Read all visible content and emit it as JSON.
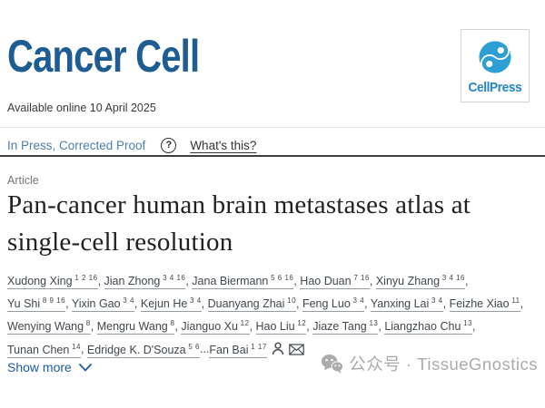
{
  "page": {
    "journal_title": "Cancer Cell",
    "logo_text": "CellPress",
    "available_online": "Available online 10 April 2025",
    "status": "In Press, Corrected Proof",
    "help_icon_glyph": "?",
    "whats_this": "What's this?",
    "article_type": "Article",
    "title": "Pan-cancer human brain metastases atlas at single-cell resolution",
    "separator": ", ",
    "ellipsis": "...",
    "authors": [
      {
        "name": "Xudong Xing",
        "sup": "1 2 16"
      },
      {
        "name": "Jian Zhong",
        "sup": "3 4 16"
      },
      {
        "name": "Jana Biermann",
        "sup": "5 6 16"
      },
      {
        "name": "Hao Duan",
        "sup": "7 16"
      },
      {
        "name": "Xinyu Zhang",
        "sup": "3 4 16"
      },
      {
        "name": "Yu Shi",
        "sup": "8 9 16"
      },
      {
        "name": "Yixin Gao",
        "sup": "3 4"
      },
      {
        "name": "Kejun He",
        "sup": "3 4"
      },
      {
        "name": "Duanyang Zhai",
        "sup": "10"
      },
      {
        "name": "Feng Luo",
        "sup": "3 4"
      },
      {
        "name": "Yanxing Lai",
        "sup": "3 4"
      },
      {
        "name": "Feizhe Xiao",
        "sup": "11"
      },
      {
        "name": "Wenying Wang",
        "sup": "8"
      },
      {
        "name": "Mengru Wang",
        "sup": "8"
      },
      {
        "name": "Jianguo Xu",
        "sup": "12"
      },
      {
        "name": "Hao Liu",
        "sup": "12"
      },
      {
        "name": "Jiaze Tang",
        "sup": "13"
      },
      {
        "name": "Liangzhao Chu",
        "sup": "13"
      },
      {
        "name": "Tunan Chen",
        "sup": "14"
      },
      {
        "name": "Edridge K. D'Souza",
        "sup": "5 6"
      }
    ],
    "corresponding_author": {
      "name": "Fan Bai",
      "sup": "1 17"
    },
    "show_more": "Show more",
    "watermark": "公众号 · TissueGnostics",
    "icons": {
      "logo": "cellpress-swirl-icon",
      "help": "question-circle-icon",
      "author": "person-icon",
      "email": "envelope-icon",
      "show_more": "chevron-down-icon",
      "watermark": "wechat-icon"
    },
    "colors": {
      "journal_blue": "#1e5c94",
      "logo_blue": "#2e9fd4",
      "status_blue": "#4c7fae",
      "link_blue": "#1d5aa8",
      "watermark_gray": "#ababab"
    }
  }
}
